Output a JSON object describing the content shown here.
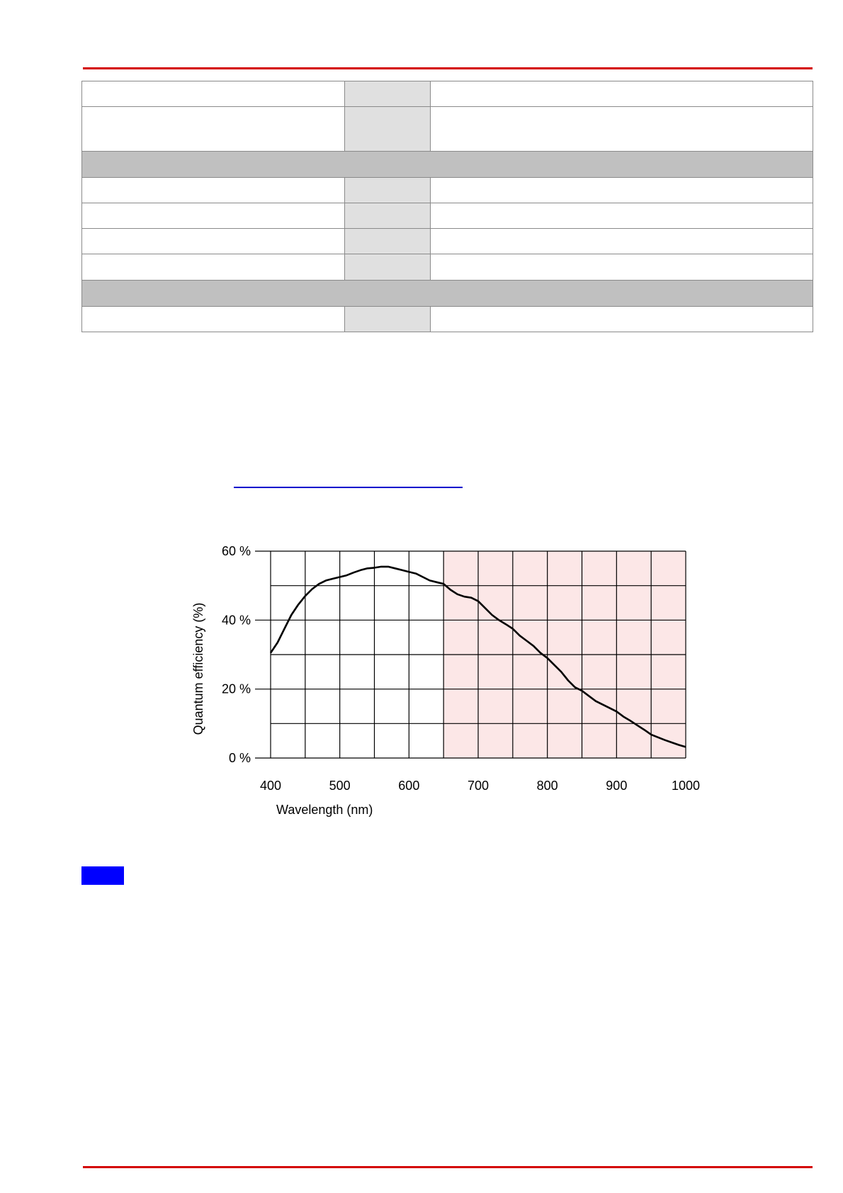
{
  "colors": {
    "rule": "#d40000",
    "link": "#0000cc",
    "badge": "#0000ff",
    "nir_band": "#fce7e7",
    "grid": "#000000",
    "curve": "#000000"
  },
  "spec_table": {
    "rows": [
      {
        "kind": "data",
        "cells": [
          "",
          "",
          ""
        ]
      },
      {
        "kind": "data",
        "cells": [
          "",
          "",
          ""
        ]
      },
      {
        "kind": "section",
        "cells": [
          ""
        ]
      },
      {
        "kind": "data",
        "cells": [
          "",
          "",
          ""
        ]
      },
      {
        "kind": "data",
        "cells": [
          "",
          "",
          ""
        ]
      },
      {
        "kind": "data",
        "cells": [
          "",
          "",
          ""
        ]
      },
      {
        "kind": "data",
        "cells": [
          "",
          "",
          ""
        ]
      },
      {
        "kind": "section",
        "cells": [
          ""
        ]
      },
      {
        "kind": "data",
        "cells": [
          "",
          "",
          ""
        ]
      }
    ]
  },
  "chart_data": {
    "type": "line",
    "title": "",
    "xlabel": "Wavelength (nm)",
    "ylabel": "Quantum efficiency (%)",
    "xlim": [
      400,
      1000
    ],
    "ylim": [
      0,
      60
    ],
    "x_ticks": [
      400,
      500,
      600,
      700,
      800,
      900,
      1000
    ],
    "x_tick_labels": [
      "400",
      "500",
      "600",
      "700",
      "800",
      "900",
      "1000"
    ],
    "x_grid_step": 50,
    "y_ticks": [
      0,
      20,
      40,
      60
    ],
    "y_tick_labels": [
      "0 %",
      "20 %",
      "40 %",
      "60 %"
    ],
    "y_grid_step": 10,
    "grid": true,
    "highlight_band": {
      "from": 650,
      "to": 1000
    },
    "series": [
      {
        "x": [
          400,
          410,
          420,
          430,
          440,
          450,
          460,
          470,
          480,
          490,
          500,
          510,
          520,
          530,
          540,
          550,
          560,
          570,
          580,
          590,
          600,
          610,
          620,
          630,
          640,
          650,
          660,
          670,
          680,
          690,
          700,
          710,
          720,
          730,
          740,
          750,
          760,
          770,
          780,
          790,
          800,
          810,
          820,
          830,
          840,
          850,
          860,
          870,
          880,
          890,
          900,
          910,
          920,
          930,
          940,
          950,
          960,
          970,
          980,
          990,
          1000
        ],
        "y": [
          30.5,
          33.5,
          37.5,
          41.5,
          44.5,
          47,
          49,
          50.5,
          51.5,
          52,
          52.5,
          53,
          53.8,
          54.5,
          55,
          55.2,
          55.5,
          55.5,
          55,
          54.5,
          54,
          53.5,
          52.5,
          51.5,
          51,
          50.5,
          48.8,
          47.5,
          46.8,
          46.5,
          45.5,
          43.5,
          41.5,
          40,
          38.8,
          37.5,
          35.5,
          34,
          32.5,
          30.5,
          29,
          27,
          25,
          22.5,
          20.5,
          19.5,
          18,
          16.5,
          15.5,
          14.5,
          13.5,
          12,
          10.8,
          9.5,
          8.2,
          6.8,
          6,
          5.2,
          4.5,
          3.8,
          3.2
        ]
      }
    ]
  }
}
